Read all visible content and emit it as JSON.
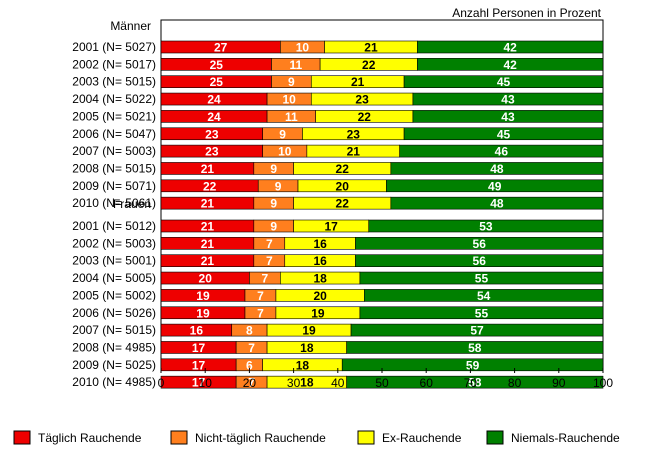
{
  "chart_data": {
    "type": "bar",
    "stacked": true,
    "orientation": "horizontal",
    "title": "Anzahl Personen in Prozent",
    "xlim": [
      0,
      100
    ],
    "xticks": [
      0,
      10,
      20,
      30,
      40,
      50,
      60,
      70,
      80,
      90,
      100
    ],
    "series": [
      {
        "name": "Täglich Rauchende",
        "color": "#ee0000"
      },
      {
        "name": "Nicht-täglich Rauchende",
        "color": "#ff7f1e"
      },
      {
        "name": "Ex-Rauchende",
        "color": "#ffff00"
      },
      {
        "name": "Niemals-Rauchende",
        "color": "#008000"
      }
    ],
    "groups": [
      {
        "name": "Männer",
        "rows": [
          {
            "label": "2001 (N= 5027)",
            "values": [
              27,
              10,
              21,
              42
            ]
          },
          {
            "label": "2002 (N= 5017)",
            "values": [
              25,
              11,
              22,
              42
            ]
          },
          {
            "label": "2003 (N= 5015)",
            "values": [
              25,
              9,
              21,
              45
            ]
          },
          {
            "label": "2004 (N= 5022)",
            "values": [
              24,
              10,
              23,
              43
            ]
          },
          {
            "label": "2005 (N= 5021)",
            "values": [
              24,
              11,
              22,
              43
            ]
          },
          {
            "label": "2006 (N= 5047)",
            "values": [
              23,
              9,
              23,
              45
            ]
          },
          {
            "label": "2007 (N= 5003)",
            "values": [
              23,
              10,
              21,
              46
            ]
          },
          {
            "label": "2008 (N= 5015)",
            "values": [
              21,
              9,
              22,
              48
            ]
          },
          {
            "label": "2009 (N= 5071)",
            "values": [
              22,
              9,
              20,
              49
            ]
          },
          {
            "label": "2010 (N= 5061)",
            "values": [
              21,
              9,
              22,
              48
            ]
          }
        ]
      },
      {
        "name": "Frauen",
        "rows": [
          {
            "label": "2001 (N= 5012)",
            "values": [
              21,
              9,
              17,
              53
            ]
          },
          {
            "label": "2002 (N= 5003)",
            "values": [
              21,
              7,
              16,
              56
            ]
          },
          {
            "label": "2003 (N= 5001)",
            "values": [
              21,
              7,
              16,
              56
            ]
          },
          {
            "label": "2004 (N= 5005)",
            "values": [
              20,
              7,
              18,
              55
            ]
          },
          {
            "label": "2005 (N= 5002)",
            "values": [
              19,
              7,
              20,
              54
            ]
          },
          {
            "label": "2006 (N= 5026)",
            "values": [
              19,
              7,
              19,
              55
            ]
          },
          {
            "label": "2007 (N= 5015)",
            "values": [
              16,
              8,
              19,
              57
            ]
          },
          {
            "label": "2008 (N= 4985)",
            "values": [
              17,
              7,
              18,
              58
            ]
          },
          {
            "label": "2009 (N= 5025)",
            "values": [
              17,
              6,
              18,
              59
            ]
          },
          {
            "label": "2010 (N= 4985)",
            "values": [
              17,
              7,
              18,
              58
            ]
          }
        ]
      }
    ],
    "legend_position": "bottom"
  }
}
